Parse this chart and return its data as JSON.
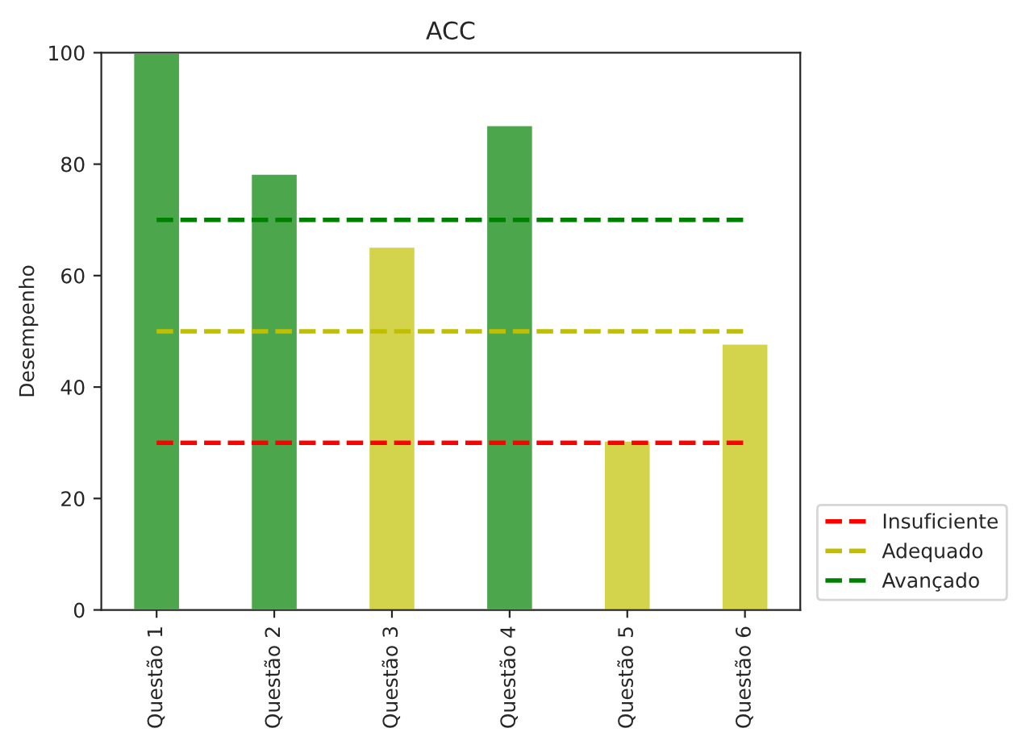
{
  "chart_data": {
    "type": "bar",
    "title": "ACC",
    "ylabel": "Desempenho",
    "categories": [
      "Questão 1",
      "Questão 2",
      "Questão 3",
      "Questão 4",
      "Questão 5",
      "Questão 6"
    ],
    "series": [
      {
        "colors": [
          "#4ca64c",
          "#4ca64c",
          "#d4d44c",
          "#4ca64c",
          "#d4d44c",
          "#d4d44c"
        ],
        "values": [
          100,
          78.3,
          65.2,
          87,
          30.4,
          47.8
        ]
      },
      {
        "type": "line",
        "name": "Insuficiente",
        "color": "#ff0000",
        "line_style": "dashed",
        "values": [
          30,
          30,
          30,
          30,
          30,
          30
        ]
      },
      {
        "type": "line",
        "name": "Adequado",
        "color": "#bfbf00",
        "line_style": "dashed",
        "values": [
          50,
          50,
          50,
          50,
          50,
          50
        ]
      },
      {
        "type": "line",
        "name": "Avançado",
        "color": "#008000",
        "line_style": "dashed",
        "values": [
          70,
          70,
          70,
          70,
          70,
          70
        ]
      }
    ],
    "ylim": [
      0,
      100
    ],
    "yticks": [
      0,
      20,
      40,
      60,
      80,
      100
    ],
    "legend": "bottom right",
    "grid": false
  }
}
